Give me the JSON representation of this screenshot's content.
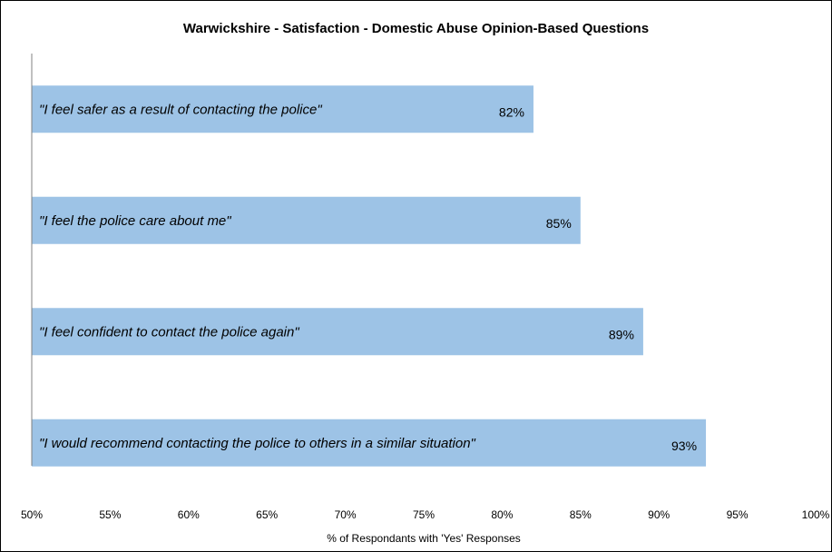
{
  "chart_data": {
    "type": "bar",
    "orientation": "horizontal",
    "title": "Warwickshire  - Satisfaction  - Domestic Abuse Opinion-Based Questions",
    "xlabel": "% of Respondants with 'Yes' Responses",
    "ylabel": "",
    "xlim": [
      0.5,
      1.0
    ],
    "xticks": [
      0.5,
      0.55,
      0.6,
      0.65,
      0.7,
      0.75,
      0.8,
      0.85,
      0.9,
      0.95,
      1.0
    ],
    "xtick_labels": [
      "50%",
      "55%",
      "60%",
      "65%",
      "70%",
      "75%",
      "80%",
      "85%",
      "90%",
      "95%",
      "100%"
    ],
    "grid": false,
    "legend": "none",
    "bar_color": "#9DC3E6",
    "categories": [
      "\"I feel safer as a result of contacting the police\"",
      "\"I feel the police care about me\"",
      "\"I feel confident to contact the police again\"",
      "\"I would recommend contacting the police to others in a similar situation\""
    ],
    "values": [
      0.82,
      0.85,
      0.89,
      0.93
    ],
    "data_labels": [
      "82%",
      "85%",
      "89%",
      "93%"
    ]
  }
}
